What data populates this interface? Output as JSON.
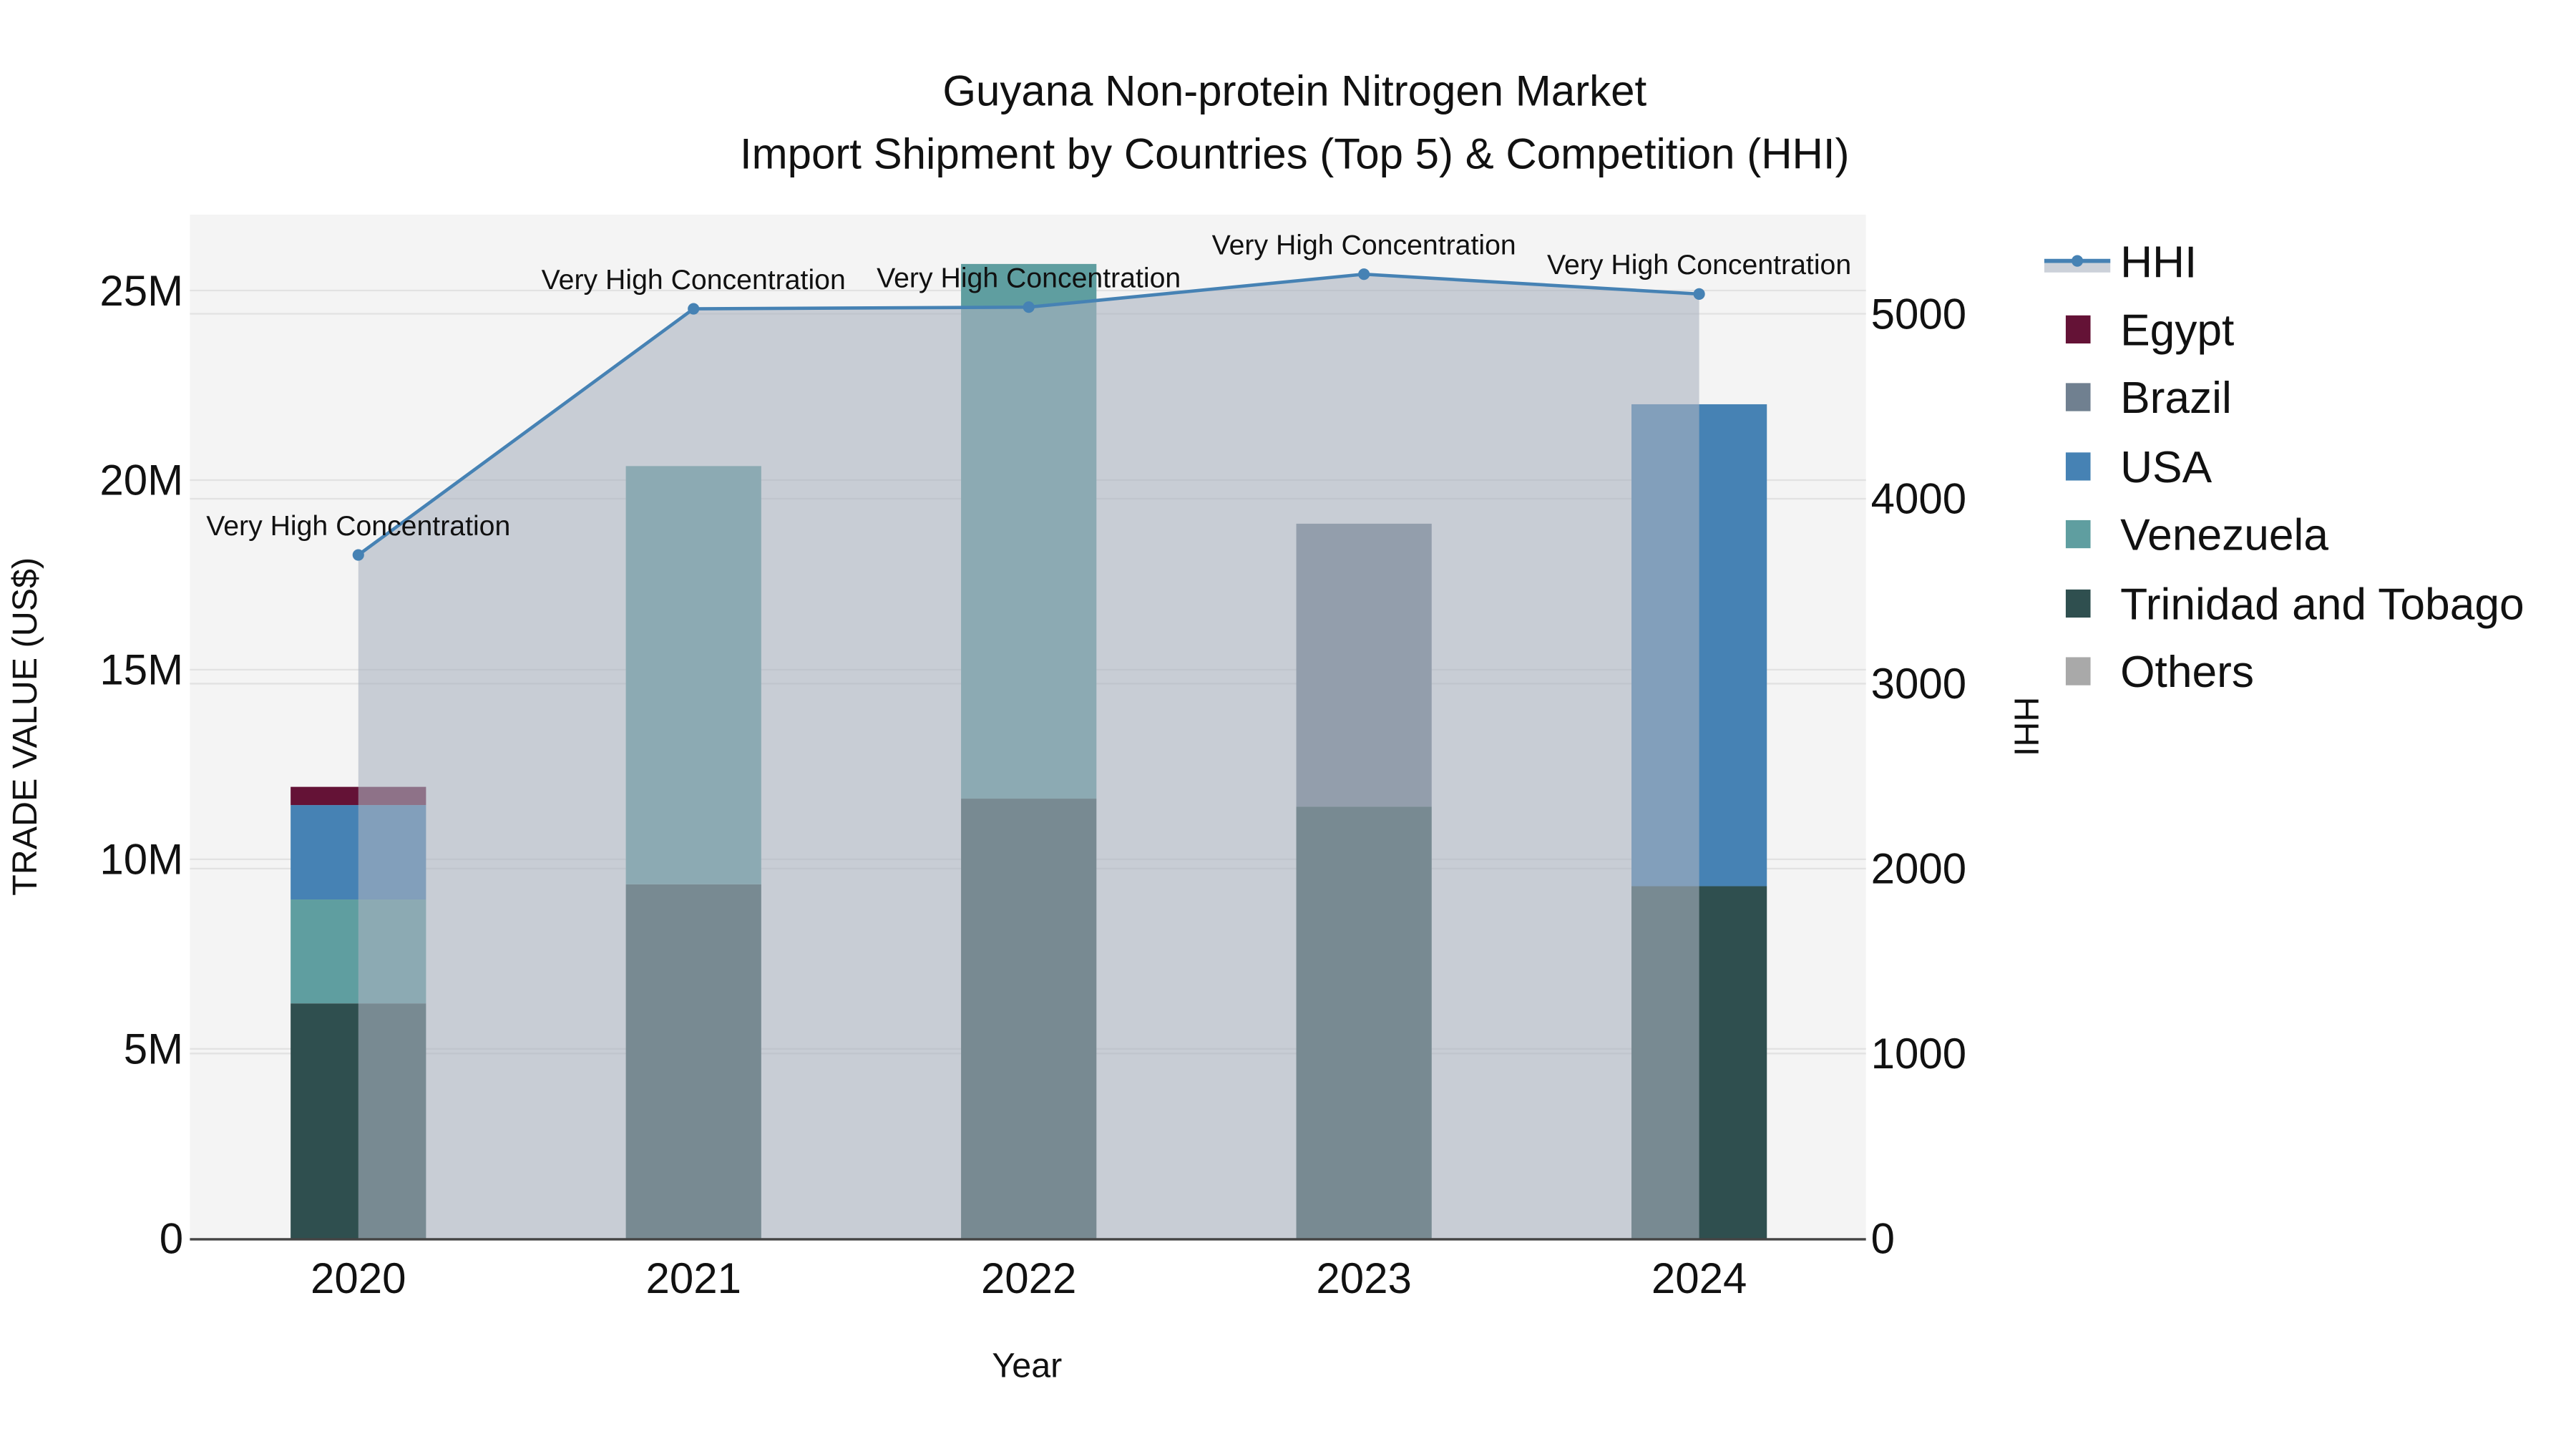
{
  "chart_data": {
    "type": "bar",
    "title": "Guyana Non-protein Nitrogen Market",
    "subtitle": "Import Shipment by Countries (Top 5) & Competition (HHI)",
    "xlabel": "Year",
    "ylabel": "TRADE VALUE (US$)",
    "y2label": "HHI",
    "categories": [
      "2020",
      "2021",
      "2022",
      "2023",
      "2024"
    ],
    "ylim": [
      0,
      27000000
    ],
    "y2lim": [
      0,
      5536
    ],
    "yticks": [
      {
        "v": 0,
        "label": "0"
      },
      {
        "v": 5000000,
        "label": "5M"
      },
      {
        "v": 10000000,
        "label": "10M"
      },
      {
        "v": 15000000,
        "label": "15M"
      },
      {
        "v": 20000000,
        "label": "20M"
      },
      {
        "v": 25000000,
        "label": "25M"
      }
    ],
    "y2ticks": [
      {
        "v": 0,
        "label": "0"
      },
      {
        "v": 1000,
        "label": "1000"
      },
      {
        "v": 2000,
        "label": "2000"
      },
      {
        "v": 3000,
        "label": "3000"
      },
      {
        "v": 4000,
        "label": "4000"
      },
      {
        "v": 5000,
        "label": "5000"
      }
    ],
    "grid": true,
    "legend_position": "right",
    "series": [
      {
        "name": "Trinidad and Tobago",
        "color": "#2F4F4F",
        "values": [
          6200000,
          9340000,
          11600000,
          11390000,
          9290000
        ]
      },
      {
        "name": "Venezuela",
        "color": "#5F9EA0",
        "values": [
          2740000,
          11030000,
          14100000,
          0,
          0
        ]
      },
      {
        "name": "Brazil",
        "color": "#708090",
        "values": [
          0,
          0,
          0,
          7460000,
          0
        ]
      },
      {
        "name": "USA",
        "color": "#4682B4",
        "values": [
          2490000,
          0,
          0,
          0,
          12710000
        ]
      },
      {
        "name": "Egypt",
        "color": "#641236",
        "values": [
          480000,
          0,
          0,
          0,
          0
        ]
      },
      {
        "name": "Others",
        "color": "#A9A9A9",
        "values": [
          0,
          0,
          0,
          0,
          0
        ]
      }
    ],
    "hhi": {
      "name": "HHI",
      "color": "#4682B4",
      "values": [
        3696,
        5027,
        5036,
        5214,
        5107
      ],
      "annotations": [
        "Very High Concentration",
        "Very High Concentration",
        "Very High Concentration",
        "Very High Concentration",
        "Very High Concentration"
      ]
    },
    "legend": [
      "HHI",
      "Egypt",
      "Brazil",
      "USA",
      "Venezuela",
      "Trinidad and Tobago",
      "Others"
    ]
  }
}
